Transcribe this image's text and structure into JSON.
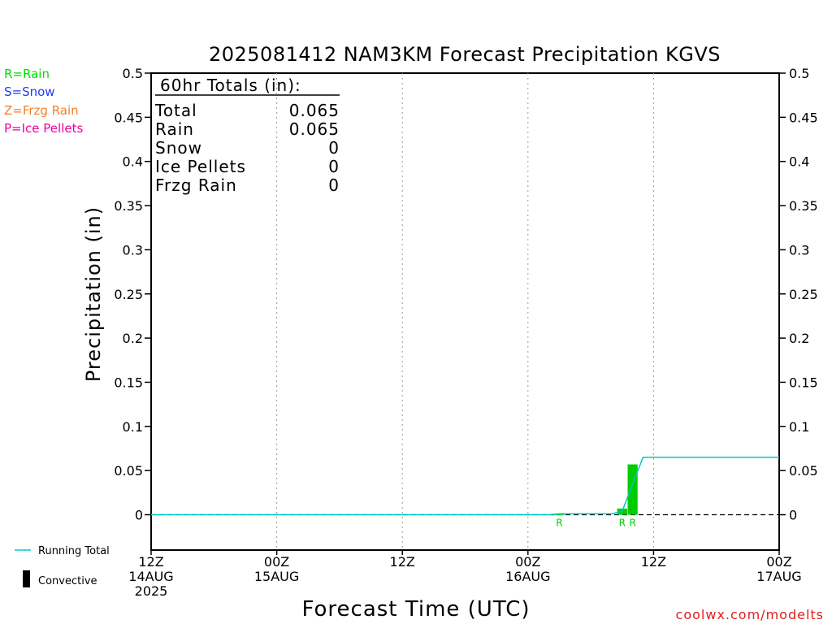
{
  "chart_data": {
    "type": "bar",
    "title": "2025081412 NAM3KM Forecast Precipitation KGVS",
    "xlabel": "Forecast Time (UTC)",
    "ylabel": "Precipitation (in)",
    "ylim": [
      -0.04,
      0.5
    ],
    "yticks": [
      0,
      0.05,
      0.1,
      0.15,
      0.2,
      0.25,
      0.3,
      0.35,
      0.4,
      0.45,
      0.5
    ],
    "ytick_labels": [
      "0",
      "0.05",
      "0.1",
      "0.15",
      "0.2",
      "0.25",
      "0.3",
      "0.35",
      "0.4",
      "0.45",
      "0.5"
    ],
    "xlim_hours": [
      0,
      60
    ],
    "xticks": [
      {
        "hour": 0,
        "line1": "12Z",
        "line2": "14AUG",
        "line3": "2025"
      },
      {
        "hour": 12,
        "line1": "00Z",
        "line2": "15AUG",
        "line3": ""
      },
      {
        "hour": 24,
        "line1": "12Z",
        "line2": "",
        "line3": ""
      },
      {
        "hour": 36,
        "line1": "00Z",
        "line2": "16AUG",
        "line3": ""
      },
      {
        "hour": 48,
        "line1": "12Z",
        "line2": "",
        "line3": ""
      },
      {
        "hour": 60,
        "line1": "00Z",
        "line2": "17AUG",
        "line3": ""
      }
    ],
    "grid": "vertical dotted",
    "bars": [
      {
        "hour": 39.0,
        "value": 0.0005,
        "type": "R"
      },
      {
        "hour": 45.0,
        "value": 0.007,
        "type": "R"
      },
      {
        "hour": 46.0,
        "value": 0.057,
        "type": "R"
      }
    ],
    "running_total": {
      "name": "Running Total",
      "x": [
        0,
        38,
        39,
        44,
        45,
        46,
        47,
        60
      ],
      "y": [
        0,
        0,
        0.001,
        0.001,
        0.004,
        0.035,
        0.065,
        0.065
      ]
    },
    "series_colors": {
      "rain": "#00cc00",
      "running_total": "#00c8c8",
      "convective": "#000000"
    }
  },
  "legend": {
    "rain": "R=Rain",
    "snow": "S=Snow",
    "frzg": "Z=Frzg Rain",
    "ice": "P=Ice Pellets",
    "rain_color": "#00dd00",
    "snow_color": "#1e3cff",
    "frzg_color": "#f08228",
    "ice_color": "#f000a0",
    "running_total": "Running Total",
    "convective": "Convective"
  },
  "totals": {
    "heading": "60hr Totals (in):",
    "rows": [
      {
        "label": "Total",
        "value": "0.065"
      },
      {
        "label": "Rain",
        "value": "0.065"
      },
      {
        "label": "Snow",
        "value": "0"
      },
      {
        "label": "Ice Pellets",
        "value": "0"
      },
      {
        "label": "Frzg Rain",
        "value": "0"
      }
    ]
  },
  "credit": "coolwx.com/modelts",
  "credit_color": "#e01e1e"
}
